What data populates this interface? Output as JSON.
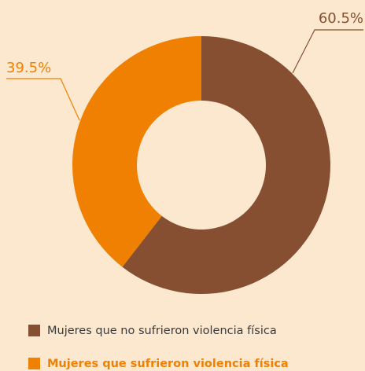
{
  "chart_data": {
    "type": "donut",
    "categories": [
      "Mujeres que no sufrieron violencia física",
      "Mujeres que sufrieron violencia física"
    ],
    "values": [
      60.5,
      39.5
    ],
    "value_labels": [
      "60.5%",
      "39.5%"
    ],
    "colors": [
      "#864f31",
      "#f08002"
    ]
  }
}
